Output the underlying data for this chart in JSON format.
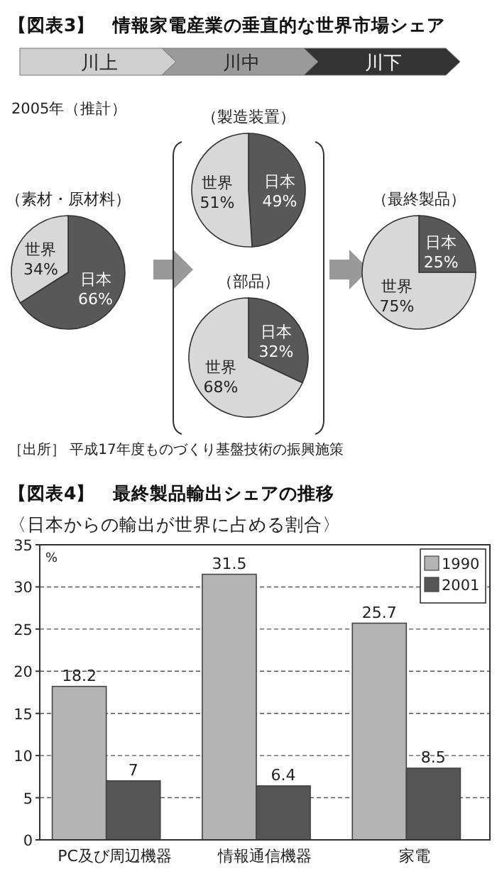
{
  "chart_data": [
    {
      "type": "other",
      "title": "【図表3】　情報家電産業の垂直的な世界市場シェア",
      "annotations": [
        "川上",
        "川中",
        "川下",
        "2005年（推計）",
        "［出所］ 平成17年度ものづくり基盤技術の振興施策"
      ]
    },
    {
      "type": "pie",
      "title": "（素材・原材料）",
      "categories": [
        "日本",
        "世界"
      ],
      "values": [
        66,
        34
      ],
      "colors": [
        "#585858",
        "#d8d8d8"
      ],
      "value_labels": [
        "66%",
        "34%"
      ]
    },
    {
      "type": "pie",
      "title": "（製造装置）",
      "categories": [
        "日本",
        "世界"
      ],
      "values": [
        49,
        51
      ],
      "colors": [
        "#585858",
        "#d8d8d8"
      ],
      "value_labels": [
        "49%",
        "51%"
      ]
    },
    {
      "type": "pie",
      "title": "（部品）",
      "categories": [
        "日本",
        "世界"
      ],
      "values": [
        32,
        68
      ],
      "colors": [
        "#585858",
        "#d8d8d8"
      ],
      "value_labels": [
        "32%",
        "68%"
      ]
    },
    {
      "type": "pie",
      "title": "（最終製品）",
      "categories": [
        "日本",
        "世界"
      ],
      "values": [
        25,
        75
      ],
      "colors": [
        "#585858",
        "#d8d8d8"
      ],
      "value_labels": [
        "25%",
        "75%"
      ]
    },
    {
      "type": "bar",
      "title": "【図表4】　最終製品輸出シェアの推移",
      "subtitle": "〈日本からの輸出が世界に占める割合〉",
      "ylabel": "%",
      "categories": [
        "PC及び周辺機器",
        "情報通信機器",
        "家電"
      ],
      "series": [
        {
          "name": "1990",
          "color": "#b4b4b4",
          "values": [
            18.2,
            31.5,
            25.7
          ]
        },
        {
          "name": "2001",
          "color": "#555555",
          "values": [
            7,
            6.4,
            8.5
          ]
        }
      ],
      "ylim": [
        0,
        35
      ],
      "yticks": [
        0,
        5,
        10,
        15,
        20,
        25,
        30,
        35
      ],
      "grid": "y",
      "data_labels": true,
      "legend": "top right"
    }
  ]
}
